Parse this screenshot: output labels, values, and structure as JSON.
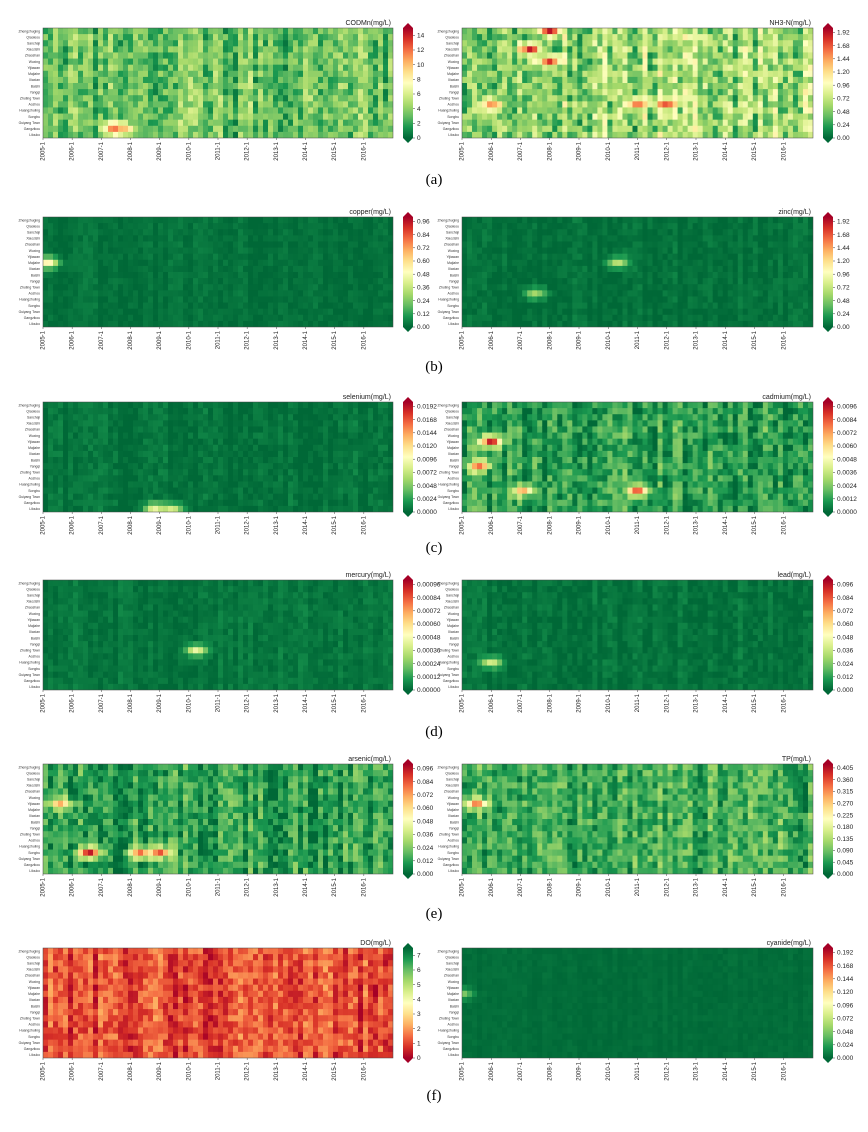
{
  "figure": {
    "row_labels": [
      "(a)",
      "(b)",
      "(c)",
      "(d)",
      "(e)",
      "(f)"
    ]
  },
  "axes": {
    "stations": [
      "Zhengzhuging",
      "Qiaoleou",
      "Sanchaji",
      "Xiaozishi",
      "Zhaoshan",
      "Wuxing",
      "Yijiawan",
      "Majiahe",
      "Xiaxian",
      "Baishi",
      "Yangqi",
      "Zhuting Town",
      "Aozhou",
      "Huangzhuling",
      "Songbu",
      "Guiyang Town",
      "Gangzikou",
      "Lilouko"
    ],
    "years": [
      "2005-1",
      "2006-1",
      "2007-1",
      "2008-1",
      "2009-1",
      "2010-1",
      "2011-1",
      "2012-1",
      "2013-1",
      "2014-1",
      "2015-1",
      "2016-1"
    ]
  },
  "colors": {
    "ramp_pollutant": [
      "#006837",
      "#1a9850",
      "#66bd63",
      "#a6d96a",
      "#d9ef8b",
      "#ffffbf",
      "#fee08b",
      "#fdae61",
      "#f46d43",
      "#d73027",
      "#a50026"
    ],
    "ramp_do": [
      "#a50026",
      "#d73027",
      "#f46d43",
      "#fdae61",
      "#fee08b",
      "#ffffbf",
      "#d9ef8b",
      "#a6d96a",
      "#66bd63",
      "#1a9850",
      "#006837"
    ]
  },
  "chart_data": [
    {
      "type": "heatmap",
      "title": "CODMn(mg/L)",
      "ticks": [
        "14",
        "12",
        "10",
        "8",
        "6",
        "4",
        "2",
        "0"
      ],
      "vmin": 0,
      "vmax": 15,
      "base": 0.22,
      "noise": 0.22,
      "ramp": "pollutant",
      "hotspots": [
        {
          "t": "2007-7",
          "s": "Gangzikou",
          "v": 14
        },
        {
          "t": "2007-10",
          "s": "Gangzikou",
          "v": 10
        }
      ]
    },
    {
      "type": "heatmap",
      "title": "NH3-N(mg/L)",
      "ticks": [
        "1.92",
        "1.68",
        "1.44",
        "1.20",
        "0.96",
        "0.72",
        "0.48",
        "0.24",
        "0.00"
      ],
      "vmin": 0,
      "vmax": 2.0,
      "base": 0.3,
      "noise": 0.3,
      "ramp": "pollutant",
      "hotspots": [
        {
          "t": "2007-5",
          "s": "Xiaozishi",
          "v": 1.9
        },
        {
          "t": "2008-1",
          "s": "Zhengzhuging",
          "v": 1.92
        },
        {
          "t": "2008-1",
          "s": "Wuxing",
          "v": 1.8
        },
        {
          "t": "2006-1",
          "s": "Aozhou",
          "v": 1.5
        },
        {
          "t": "2011-1",
          "s": "Aozhou",
          "v": 1.6
        },
        {
          "t": "2012-1",
          "s": "Aozhou",
          "v": 1.7
        }
      ]
    },
    {
      "type": "heatmap",
      "title": "copper(mg/L)",
      "ticks": [
        "0.96",
        "0.84",
        "0.72",
        "0.60",
        "0.48",
        "0.36",
        "0.24",
        "0.12",
        "0.00"
      ],
      "vmin": 0,
      "vmax": 1.0,
      "base": 0.02,
      "noise": 0.04,
      "ramp": "pollutant",
      "hotspots": [
        {
          "t": "2005-3",
          "s": "Majiahe",
          "v": 0.55
        }
      ]
    },
    {
      "type": "heatmap",
      "title": "zinc(mg/L)",
      "ticks": [
        "1.92",
        "1.68",
        "1.44",
        "1.20",
        "0.96",
        "0.72",
        "0.48",
        "0.24",
        "0.00"
      ],
      "vmin": 0,
      "vmax": 2.0,
      "base": 0.02,
      "noise": 0.05,
      "ramp": "pollutant",
      "hotspots": [
        {
          "t": "2010-5",
          "s": "Majiahe",
          "v": 0.7
        },
        {
          "t": "2007-7",
          "s": "Aozhou",
          "v": 0.6
        }
      ]
    },
    {
      "type": "heatmap",
      "title": "selenium(mg/L)",
      "ticks": [
        "0.0192",
        "0.0168",
        "0.0144",
        "0.0120",
        "0.0096",
        "0.0072",
        "0.0048",
        "0.0024",
        "0.0000"
      ],
      "vmin": 0,
      "vmax": 0.02,
      "base": 0.02,
      "noise": 0.06,
      "ramp": "pollutant",
      "hotspots": [
        {
          "t": "2008-11",
          "s": "Lilouko",
          "v": 0.009
        },
        {
          "t": "2009-6",
          "s": "Lilouko",
          "v": 0.008
        }
      ]
    },
    {
      "type": "heatmap",
      "title": "cadmium(mg/L)",
      "ticks": [
        "0.0096",
        "0.0084",
        "0.0072",
        "0.0060",
        "0.0048",
        "0.0036",
        "0.0024",
        "0.0012",
        "0.0000"
      ],
      "vmin": 0,
      "vmax": 0.01,
      "base": 0.12,
      "noise": 0.2,
      "ramp": "pollutant",
      "hotspots": [
        {
          "t": "2006-1",
          "s": "Yijiawan",
          "v": 0.0096
        },
        {
          "t": "2005-8",
          "s": "Yangqi",
          "v": 0.008
        },
        {
          "t": "2007-2",
          "s": "Songbu",
          "v": 0.007
        },
        {
          "t": "2011-1",
          "s": "Songbu",
          "v": 0.0085
        }
      ]
    },
    {
      "type": "heatmap",
      "title": "mercury(mg/L)",
      "ticks": [
        "0.00096",
        "0.00084",
        "0.00072",
        "0.00060",
        "0.00048",
        "0.00036",
        "0.00024",
        "0.00012",
        "0.00000"
      ],
      "vmin": 0,
      "vmax": 0.001,
      "base": 0.03,
      "noise": 0.05,
      "ramp": "pollutant",
      "hotspots": [
        {
          "t": "2010-4",
          "s": "Zhuting Town",
          "v": 0.00045
        }
      ]
    },
    {
      "type": "heatmap",
      "title": "lead(mg/L)",
      "ticks": [
        "0.096",
        "0.084",
        "0.072",
        "0.060",
        "0.048",
        "0.036",
        "0.024",
        "0.012",
        "0.000"
      ],
      "vmin": 0,
      "vmax": 0.1,
      "base": 0.02,
      "noise": 0.06,
      "ramp": "pollutant",
      "hotspots": [
        {
          "t": "2006-1",
          "s": "Huangzhuling",
          "v": 0.04
        }
      ]
    },
    {
      "type": "heatmap",
      "title": "arsenic(mg/L)",
      "ticks": [
        "0.096",
        "0.084",
        "0.072",
        "0.060",
        "0.048",
        "0.036",
        "0.024",
        "0.012",
        "0.000"
      ],
      "vmin": 0,
      "vmax": 0.1,
      "base": 0.12,
      "noise": 0.2,
      "ramp": "pollutant",
      "hotspots": [
        {
          "t": "2006-8",
          "s": "Songbu",
          "v": 0.096
        },
        {
          "t": "2008-5",
          "s": "Songbu",
          "v": 0.08
        },
        {
          "t": "2009-1",
          "s": "Songbu",
          "v": 0.085
        },
        {
          "t": "2005-8",
          "s": "Yijiawan",
          "v": 0.07
        }
      ]
    },
    {
      "type": "heatmap",
      "title": "TP(mg/L)",
      "ticks": [
        "0.405",
        "0.360",
        "0.315",
        "0.270",
        "0.225",
        "0.180",
        "0.135",
        "0.090",
        "0.045",
        "0.000"
      ],
      "vmin": 0,
      "vmax": 0.42,
      "base": 0.15,
      "noise": 0.2,
      "ramp": "pollutant",
      "hotspots": [
        {
          "t": "2005-7",
          "s": "Yijiawan",
          "v": 0.33
        }
      ]
    },
    {
      "type": "heatmap",
      "title": "DO(mg/L)",
      "ticks": [
        "7",
        "6",
        "5",
        "4",
        "3",
        "2",
        "1",
        "0"
      ],
      "vmin": 0,
      "vmax": 7.5,
      "base": 0.15,
      "noise": 0.18,
      "ramp": "do",
      "hotspots": [
        {
          "t": "2005-4",
          "s": "Songbu",
          "v": 0.6
        },
        {
          "t": "2005-8",
          "s": "Songbu",
          "v": 0.8
        },
        {
          "t": "2016-9",
          "s": "Huangzhuling",
          "v": 1.5
        }
      ]
    },
    {
      "type": "heatmap",
      "title": "cyanide(mg/L)",
      "ticks": [
        "0.192",
        "0.168",
        "0.144",
        "0.120",
        "0.096",
        "0.072",
        "0.048",
        "0.024",
        "0.000"
      ],
      "vmin": 0,
      "vmax": 0.2,
      "base": 0.01,
      "noise": 0.02,
      "ramp": "pollutant",
      "hotspots": [
        {
          "t": "2005-1",
          "s": "Majiahe",
          "v": 0.05
        }
      ]
    }
  ]
}
